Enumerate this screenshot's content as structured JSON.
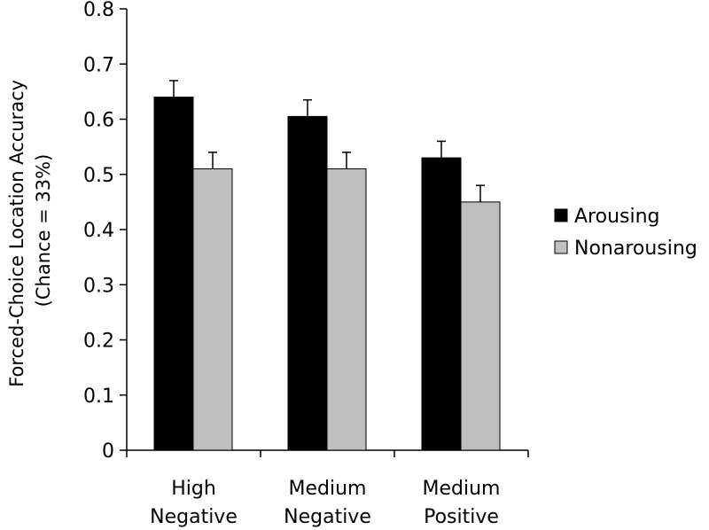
{
  "chart_data": {
    "type": "bar",
    "categories": [
      [
        "High",
        "Negative"
      ],
      [
        "Medium",
        "Negative"
      ],
      [
        "Medium",
        "Positive"
      ]
    ],
    "series": [
      {
        "name": "Arousing",
        "color": "#000000",
        "values": [
          0.64,
          0.605,
          0.53
        ],
        "errors": [
          0.03,
          0.03,
          0.03
        ]
      },
      {
        "name": "Nonarousing",
        "color": "#bfbfbf",
        "values": [
          0.51,
          0.51,
          0.45
        ],
        "errors": [
          0.03,
          0.03,
          0.03
        ]
      }
    ],
    "ylabel_line1": "Forced-Choice Location Accuracy",
    "ylabel_line2": "(Chance = 33%)",
    "ylim": [
      0,
      0.8
    ],
    "yticks": [
      "0",
      "0.1",
      "0.2",
      "0.3",
      "0.4",
      "0.5",
      "0.6",
      "0.7",
      "0.8"
    ],
    "legend_position": "right",
    "grid": false
  }
}
